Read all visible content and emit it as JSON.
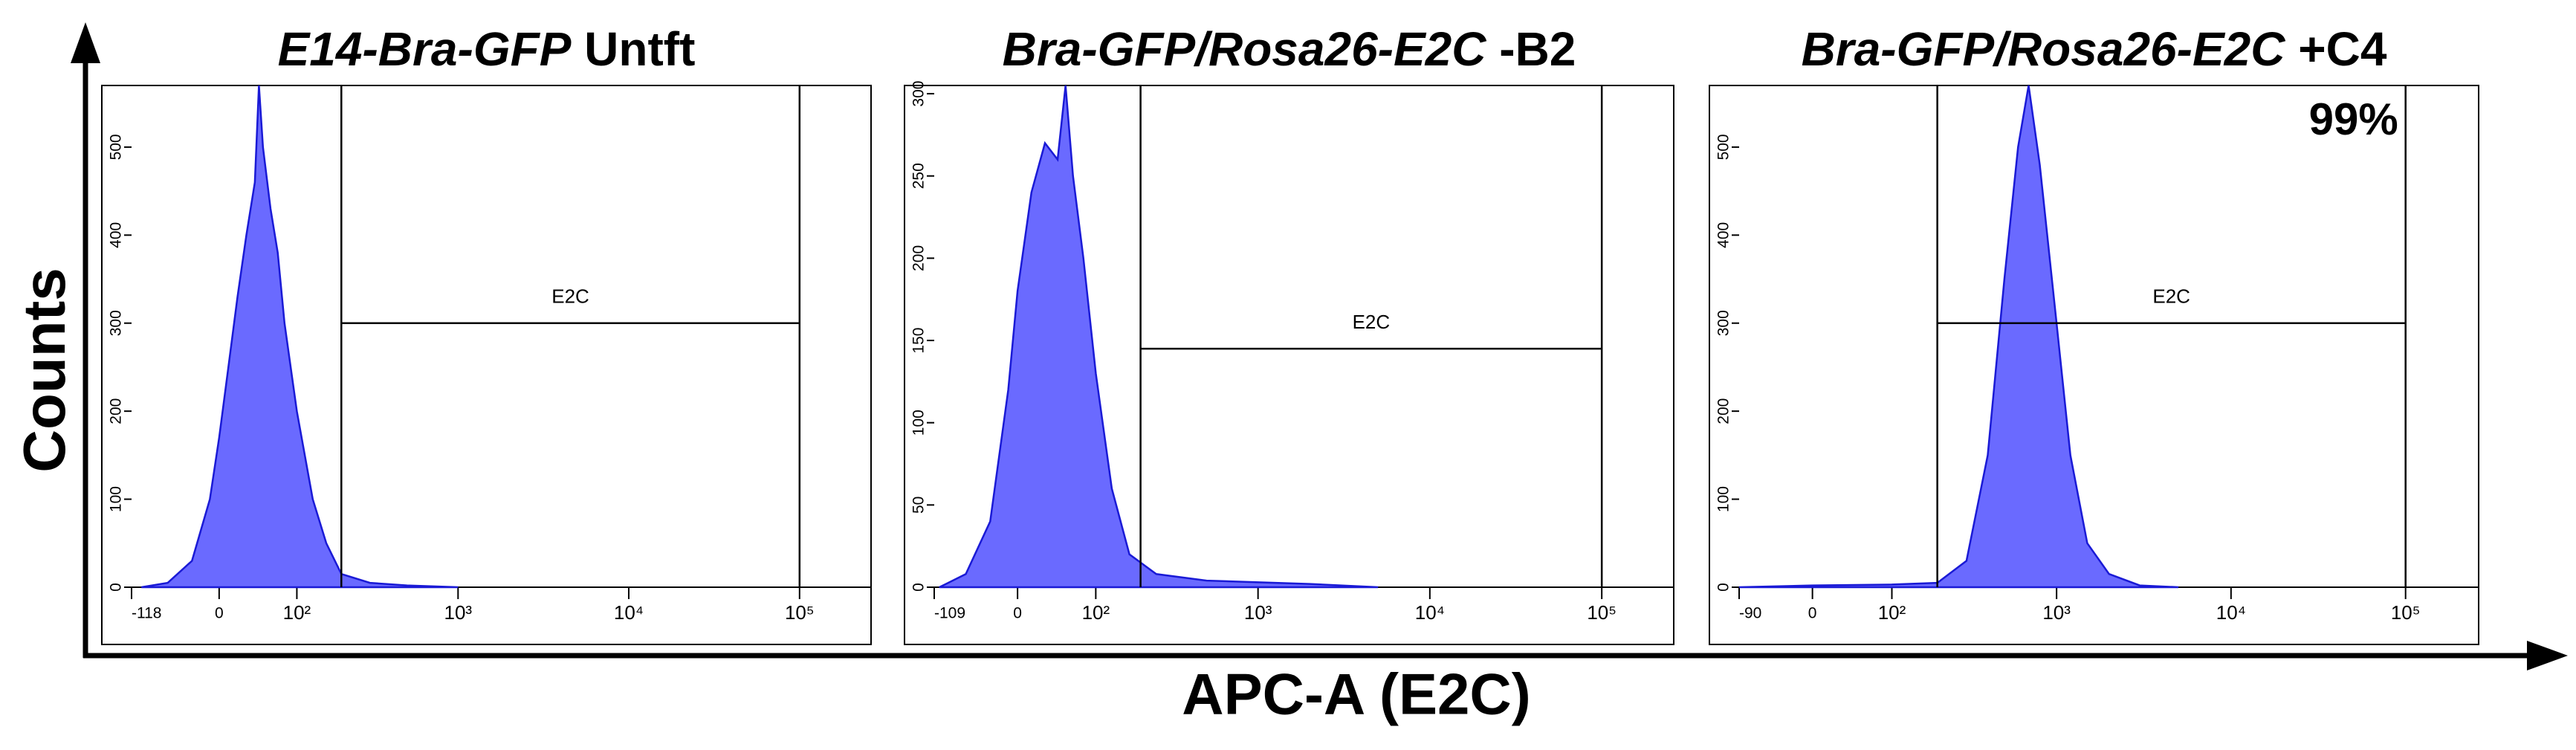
{
  "x_label": "APC-A (E2C)",
  "y_label": "Counts",
  "chart_data": [
    {
      "type": "area",
      "title_italic": "E14-Bra-GFP",
      "title": "Untft",
      "xscale": "biexponential",
      "color": "#6a6aff",
      "x": [
        -100,
        -60,
        -30,
        -10,
        0,
        10,
        20,
        30,
        40,
        45,
        50,
        60,
        70,
        80,
        100,
        130,
        160,
        200,
        300,
        500,
        1000
      ],
      "values": [
        0,
        5,
        30,
        100,
        170,
        250,
        330,
        400,
        460,
        570,
        500,
        430,
        380,
        300,
        200,
        100,
        50,
        15,
        5,
        2,
        0
      ],
      "xlim": [
        -118,
        262144
      ],
      "ylim": [
        0,
        570
      ],
      "xticks": [
        -118,
        0,
        {
          "value": 100,
          "label": "10²"
        },
        {
          "value": 1000,
          "label": "10³"
        },
        {
          "value": 10000,
          "label": "10⁴"
        },
        {
          "value": 100000,
          "label": "10⁵"
        }
      ],
      "yticks": [
        0,
        100,
        200,
        300,
        400,
        500
      ],
      "gate": {
        "label": "E2C",
        "x": [
          200,
          100000
        ],
        "y": 300
      }
    },
    {
      "type": "area",
      "title_italic": "Bra-GFP/Rosa26-E2C",
      "title": "-B2",
      "xscale": "biexponential",
      "color": "#6a6aff",
      "x": [
        -100,
        -60,
        -30,
        -10,
        0,
        15,
        30,
        45,
        55,
        65,
        80,
        100,
        130,
        170,
        250,
        500,
        2000,
        5000
      ],
      "values": [
        0,
        8,
        40,
        120,
        180,
        240,
        270,
        260,
        305,
        250,
        200,
        130,
        60,
        20,
        8,
        4,
        2,
        0
      ],
      "xlim": [
        -109,
        262144
      ],
      "ylim": [
        0,
        305
      ],
      "xticks": [
        -109,
        0,
        {
          "value": 100,
          "label": "10²"
        },
        {
          "value": 1000,
          "label": "10³"
        },
        {
          "value": 10000,
          "label": "10⁴"
        },
        {
          "value": 100000,
          "label": "10⁵"
        }
      ],
      "yticks": [
        0,
        50,
        100,
        150,
        200,
        250,
        300
      ],
      "gate": {
        "label": "E2C",
        "x": [
          200,
          100000
        ],
        "y": 145
      }
    },
    {
      "type": "area",
      "title_italic": "Bra-GFP/Rosa26-E2C",
      "title": "+C4",
      "xscale": "biexponential",
      "color": "#6a6aff",
      "x": [
        -90,
        0,
        100,
        200,
        300,
        400,
        500,
        600,
        690,
        800,
        1000,
        1200,
        1500,
        2000,
        3000,
        5000
      ],
      "values": [
        0,
        2,
        3,
        5,
        30,
        150,
        350,
        500,
        570,
        480,
        300,
        150,
        50,
        15,
        2,
        0
      ],
      "xlim": [
        -90,
        262144
      ],
      "ylim": [
        0,
        570
      ],
      "xticks": [
        -90,
        0,
        {
          "value": 100,
          "label": "10²"
        },
        {
          "value": 1000,
          "label": "10³"
        },
        {
          "value": 10000,
          "label": "10⁴"
        },
        {
          "value": 100000,
          "label": "10⁵"
        }
      ],
      "yticks": [
        0,
        100,
        200,
        300,
        400,
        500
      ],
      "gate": {
        "label": "E2C",
        "x": [
          200,
          100000
        ],
        "y": 300,
        "percent": "99%"
      }
    }
  ]
}
